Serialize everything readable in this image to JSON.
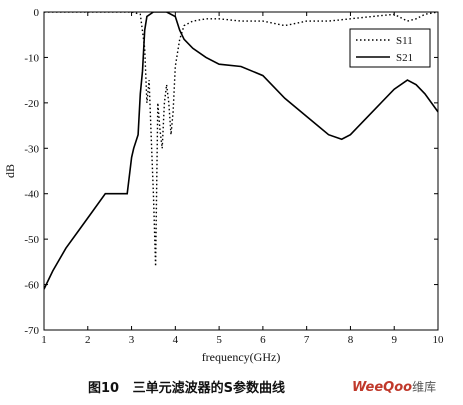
{
  "chart_data": {
    "type": "line",
    "title": "",
    "xlabel": "frequency(GHz)",
    "ylabel": "dB",
    "xlim": [
      1,
      10
    ],
    "ylim": [
      -70,
      0
    ],
    "xticks": [
      1,
      2,
      3,
      4,
      5,
      6,
      7,
      8,
      9,
      10
    ],
    "yticks": [
      0,
      -10,
      -20,
      -30,
      -40,
      -50,
      -60,
      -70
    ],
    "grid": false,
    "legend": "top-right",
    "series": [
      {
        "name": "S11",
        "style": "dotted",
        "color": "#000000",
        "x": [
          1.0,
          3.0,
          3.2,
          3.3,
          3.35,
          3.4,
          3.45,
          3.5,
          3.55,
          3.6,
          3.65,
          3.7,
          3.75,
          3.8,
          3.85,
          3.9,
          3.95,
          4.0,
          4.1,
          4.2,
          4.4,
          4.7,
          5.0,
          5.5,
          6.0,
          6.5,
          7.0,
          7.5,
          8.0,
          8.5,
          9.0,
          9.3,
          9.5,
          9.7,
          10.0
        ],
        "y": [
          0,
          0,
          -0.5,
          -8,
          -20,
          -15,
          -28,
          -40,
          -56,
          -20,
          -26,
          -30,
          -20,
          -16,
          -20,
          -27,
          -22,
          -12,
          -6,
          -3,
          -2,
          -1.5,
          -1.5,
          -2,
          -2,
          -3,
          -2,
          -2,
          -1.5,
          -1,
          -0.5,
          -2,
          -1.5,
          -0.5,
          0
        ]
      },
      {
        "name": "S21",
        "style": "solid",
        "color": "#000000",
        "x": [
          1.0,
          1.2,
          1.5,
          1.8,
          2.1,
          2.4,
          2.6,
          2.9,
          3.0,
          3.05,
          3.15,
          3.2,
          3.25,
          3.3,
          3.35,
          3.5,
          3.8,
          4.0,
          4.1,
          4.2,
          4.4,
          4.7,
          5.0,
          5.5,
          6.0,
          6.5,
          7.0,
          7.5,
          7.8,
          8.0,
          8.5,
          9.0,
          9.3,
          9.5,
          9.7,
          10.0
        ],
        "y": [
          -61,
          -57,
          -52,
          -48,
          -44,
          -40,
          -40,
          -40,
          -32,
          -30,
          -27,
          -18,
          -13,
          -4,
          -1,
          0,
          0,
          -1,
          -4,
          -6,
          -8,
          -10,
          -11.5,
          -12,
          -14,
          -19,
          -23,
          -27,
          -28,
          -27,
          -22,
          -17,
          -15,
          -16,
          -18,
          -22
        ]
      }
    ]
  },
  "caption": {
    "figure_label": "图10",
    "text": "三单元滤波器的S参数曲线"
  },
  "watermark": {
    "brand": "WeeQoo",
    "suffix": "维库"
  }
}
